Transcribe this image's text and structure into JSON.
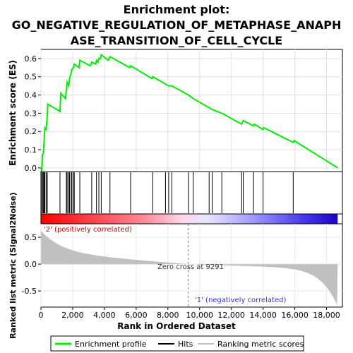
{
  "chart_data": {
    "type": "line",
    "title_lines": [
      "Enrichment plot:",
      "GO_NEGATIVE_REGULATION_OF_METAPHASE_ANAPH",
      "ASE_TRANSITION_OF_CELL_CYCLE"
    ],
    "es_panel": {
      "ylabel": "Enrichment score (ES)",
      "ylim": [
        -0.02,
        0.65
      ],
      "yticks": [
        "0.0",
        "0.1",
        "0.2",
        "0.3",
        "0.4",
        "0.5",
        "0.6"
      ],
      "ytick_values": [
        0.0,
        0.1,
        0.2,
        0.3,
        0.4,
        0.5,
        0.6
      ],
      "series": [
        {
          "name": "Enrichment profile",
          "color": "#00ee00",
          "points": [
            [
              0,
              0
            ],
            [
              60,
              -0.02
            ],
            [
              90,
              0.07
            ],
            [
              150,
              0.08
            ],
            [
              200,
              0.15
            ],
            [
              250,
              0.22
            ],
            [
              330,
              0.21
            ],
            [
              400,
              0.29
            ],
            [
              430,
              0.35
            ],
            [
              1200,
              0.31
            ],
            [
              1250,
              0.41
            ],
            [
              1550,
              0.38
            ],
            [
              1600,
              0.43
            ],
            [
              1650,
              0.47
            ],
            [
              1750,
              0.45
            ],
            [
              1800,
              0.49
            ],
            [
              1900,
              0.52
            ],
            [
              1950,
              0.54
            ],
            [
              2050,
              0.55
            ],
            [
              2100,
              0.57
            ],
            [
              2400,
              0.55
            ],
            [
              2450,
              0.59
            ],
            [
              3100,
              0.56
            ],
            [
              3200,
              0.58
            ],
            [
              3450,
              0.57
            ],
            [
              3500,
              0.59
            ],
            [
              3600,
              0.58
            ],
            [
              3650,
              0.6
            ],
            [
              3750,
              0.6
            ],
            [
              3800,
              0.62
            ],
            [
              4250,
              0.59
            ],
            [
              4350,
              0.61
            ],
            [
              5600,
              0.55
            ],
            [
              5650,
              0.56
            ],
            [
              7000,
              0.49
            ],
            [
              7050,
              0.5
            ],
            [
              7850,
              0.46
            ],
            [
              8050,
              0.45
            ],
            [
              8250,
              0.45
            ],
            [
              9300,
              0.4
            ],
            [
              9600,
              0.38
            ],
            [
              10600,
              0.33
            ],
            [
              10800,
              0.32
            ],
            [
              11400,
              0.3
            ],
            [
              12650,
              0.24
            ],
            [
              12750,
              0.26
            ],
            [
              13400,
              0.23
            ],
            [
              13450,
              0.24
            ],
            [
              14000,
              0.21
            ],
            [
              14050,
              0.22
            ],
            [
              15900,
              0.14
            ],
            [
              15950,
              0.15
            ],
            [
              18700,
              0.0
            ]
          ]
        }
      ]
    },
    "hits": [
      60,
      90,
      150,
      200,
      250,
      330,
      400,
      1200,
      1600,
      1650,
      1750,
      1800,
      1900,
      1950,
      2050,
      2100,
      2450,
      3200,
      3500,
      3650,
      3800,
      4350,
      5650,
      7050,
      7850,
      8050,
      8250,
      9300,
      9600,
      10600,
      10800,
      11400,
      12650,
      12750,
      13400,
      14000,
      15900
    ],
    "ranking_panel": {
      "ylabel": "Ranked list metric (Signal2Noise)",
      "ylim": [
        -0.8,
        0.75
      ],
      "yticks": [
        "0.5",
        "0.0",
        "-0.5"
      ],
      "ytick_values": [
        0.5,
        0.0,
        -0.5
      ],
      "metric_start": 0.62,
      "metric_end": -0.78,
      "zero_cross_label": "Zero cross at 9291",
      "zero_cross": 9291,
      "positive_label": "'2' (positively correlated)",
      "negative_label": "'1' (negatively correlated)"
    },
    "xaxis": {
      "label": "Rank in Ordered Dataset",
      "xlim": [
        0,
        19000
      ],
      "ticks": [
        "0",
        "2,000",
        "4,000",
        "6,000",
        "8,000",
        "10,000",
        "12,000",
        "14,000",
        "16,000",
        "18,000"
      ],
      "tick_values": [
        0,
        2000,
        4000,
        6000,
        8000,
        10000,
        12000,
        14000,
        16000,
        18000
      ],
      "n_genes": 18700
    },
    "legend": {
      "placement": "bottom",
      "items": [
        {
          "label": "Enrichment profile",
          "color": "#00ee00"
        },
        {
          "label": "Hits",
          "color": "#000000"
        },
        {
          "label": "Ranking metric scores",
          "color": "#c0c0c0"
        }
      ]
    }
  }
}
